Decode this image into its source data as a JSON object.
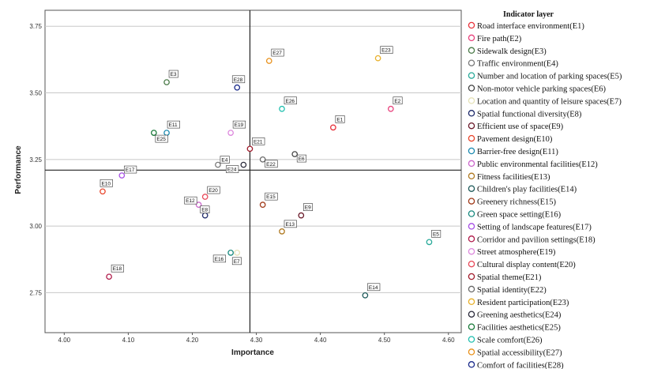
{
  "chart_data": {
    "type": "scatter",
    "title": "",
    "xlabel": "Importance",
    "ylabel": "Performance",
    "xlim": [
      3.97,
      4.62
    ],
    "ylim": [
      2.6,
      3.81
    ],
    "x_ticks": [
      "4.00",
      "4.10",
      "4.20",
      "4.30",
      "4.40",
      "4.50",
      "4.60"
    ],
    "y_ticks": [
      "2.75",
      "3.00",
      "3.25",
      "3.50",
      "3.75"
    ],
    "reference_lines": {
      "x": 4.29,
      "y": 3.21
    },
    "legend_title": "Indicator layer",
    "legend_position": "right",
    "series": [
      {
        "id": "E1",
        "name": "Road interface environment(E1)",
        "color": "#e8333c",
        "x": 4.42,
        "y": 3.37
      },
      {
        "id": "E2",
        "name": "Fire path(E2)",
        "color": "#e8427c",
        "x": 4.51,
        "y": 3.44
      },
      {
        "id": "E3",
        "name": "Sidewalk design(E3)",
        "color": "#4a7a48",
        "x": 4.16,
        "y": 3.54
      },
      {
        "id": "E4",
        "name": "Traffic environment(E4)",
        "color": "#7a7a7a",
        "x": 4.24,
        "y": 3.23
      },
      {
        "id": "E5",
        "name": "Number and location of parking spaces(E5)",
        "color": "#2aaa9a",
        "x": 4.57,
        "y": 2.94
      },
      {
        "id": "E6",
        "name": "Non-motor vehicle parking spaces(E6)",
        "color": "#444444",
        "x": 4.36,
        "y": 3.27
      },
      {
        "id": "E7",
        "name": "Location and quantity of leisure spaces(E7)",
        "color": "#e6e2b8",
        "x": 4.27,
        "y": 2.9
      },
      {
        "id": "E8",
        "name": "Spatial functional diversity(E8)",
        "color": "#1e2a6a",
        "x": 4.22,
        "y": 3.04
      },
      {
        "id": "E9",
        "name": "Efficient use of space(E9)",
        "color": "#6a1a2a",
        "x": 4.37,
        "y": 3.04
      },
      {
        "id": "E10",
        "name": "Pavement design(E10)",
        "color": "#e8462c",
        "x": 4.06,
        "y": 3.13
      },
      {
        "id": "E11",
        "name": "Barrier-free design(E11)",
        "color": "#1a8ab0",
        "x": 4.16,
        "y": 3.35
      },
      {
        "id": "E12",
        "name": "Public environmental facilities(E12)",
        "color": "#cc66cc",
        "x": 4.21,
        "y": 3.08
      },
      {
        "id": "E13",
        "name": "Fitness facilities(E13)",
        "color": "#b07a22",
        "x": 4.34,
        "y": 2.98
      },
      {
        "id": "E14",
        "name": "Children's play facilities(E14)",
        "color": "#1e5a5a",
        "x": 4.47,
        "y": 2.74
      },
      {
        "id": "E15",
        "name": "Greenery richness(E15)",
        "color": "#a03a1a",
        "x": 4.31,
        "y": 3.08
      },
      {
        "id": "E16",
        "name": "Green space setting(E16)",
        "color": "#1a8a80",
        "x": 4.26,
        "y": 2.9
      },
      {
        "id": "E17",
        "name": "Setting of landscape features(E17)",
        "color": "#a64ee6",
        "x": 4.09,
        "y": 3.19
      },
      {
        "id": "E18",
        "name": "Corridor and pavilion settings(E18)",
        "color": "#b01a4a",
        "x": 4.07,
        "y": 2.81
      },
      {
        "id": "E19",
        "name": "Street atmosphere(E19)",
        "color": "#dd88dd",
        "x": 4.26,
        "y": 3.35
      },
      {
        "id": "E20",
        "name": "Cultural display content(E20)",
        "color": "#e84a5a",
        "x": 4.22,
        "y": 3.11
      },
      {
        "id": "E21",
        "name": "Spatial theme(E21)",
        "color": "#a01a2a",
        "x": 4.29,
        "y": 3.29
      },
      {
        "id": "E22",
        "name": "Spatial identity(E22)",
        "color": "#6a6a6a",
        "x": 4.31,
        "y": 3.25
      },
      {
        "id": "E23",
        "name": "Resident participation(E23)",
        "color": "#e8b02a",
        "x": 4.49,
        "y": 3.63
      },
      {
        "id": "E24",
        "name": "Greening aesthetics(E24)",
        "color": "#2a2a3a",
        "x": 4.28,
        "y": 3.23
      },
      {
        "id": "E25",
        "name": "Facilities aesthetics(E25)",
        "color": "#1a7a3a",
        "x": 4.14,
        "y": 3.35
      },
      {
        "id": "E26",
        "name": "Scale comfort(E26)",
        "color": "#22c0b0",
        "x": 4.34,
        "y": 3.44
      },
      {
        "id": "E27",
        "name": "Spatial accessibility(E27)",
        "color": "#e8901a",
        "x": 4.32,
        "y": 3.62
      },
      {
        "id": "E28",
        "name": "Comfort of facilities(E28)",
        "color": "#1a2a8a",
        "x": 4.27,
        "y": 3.52
      }
    ]
  }
}
